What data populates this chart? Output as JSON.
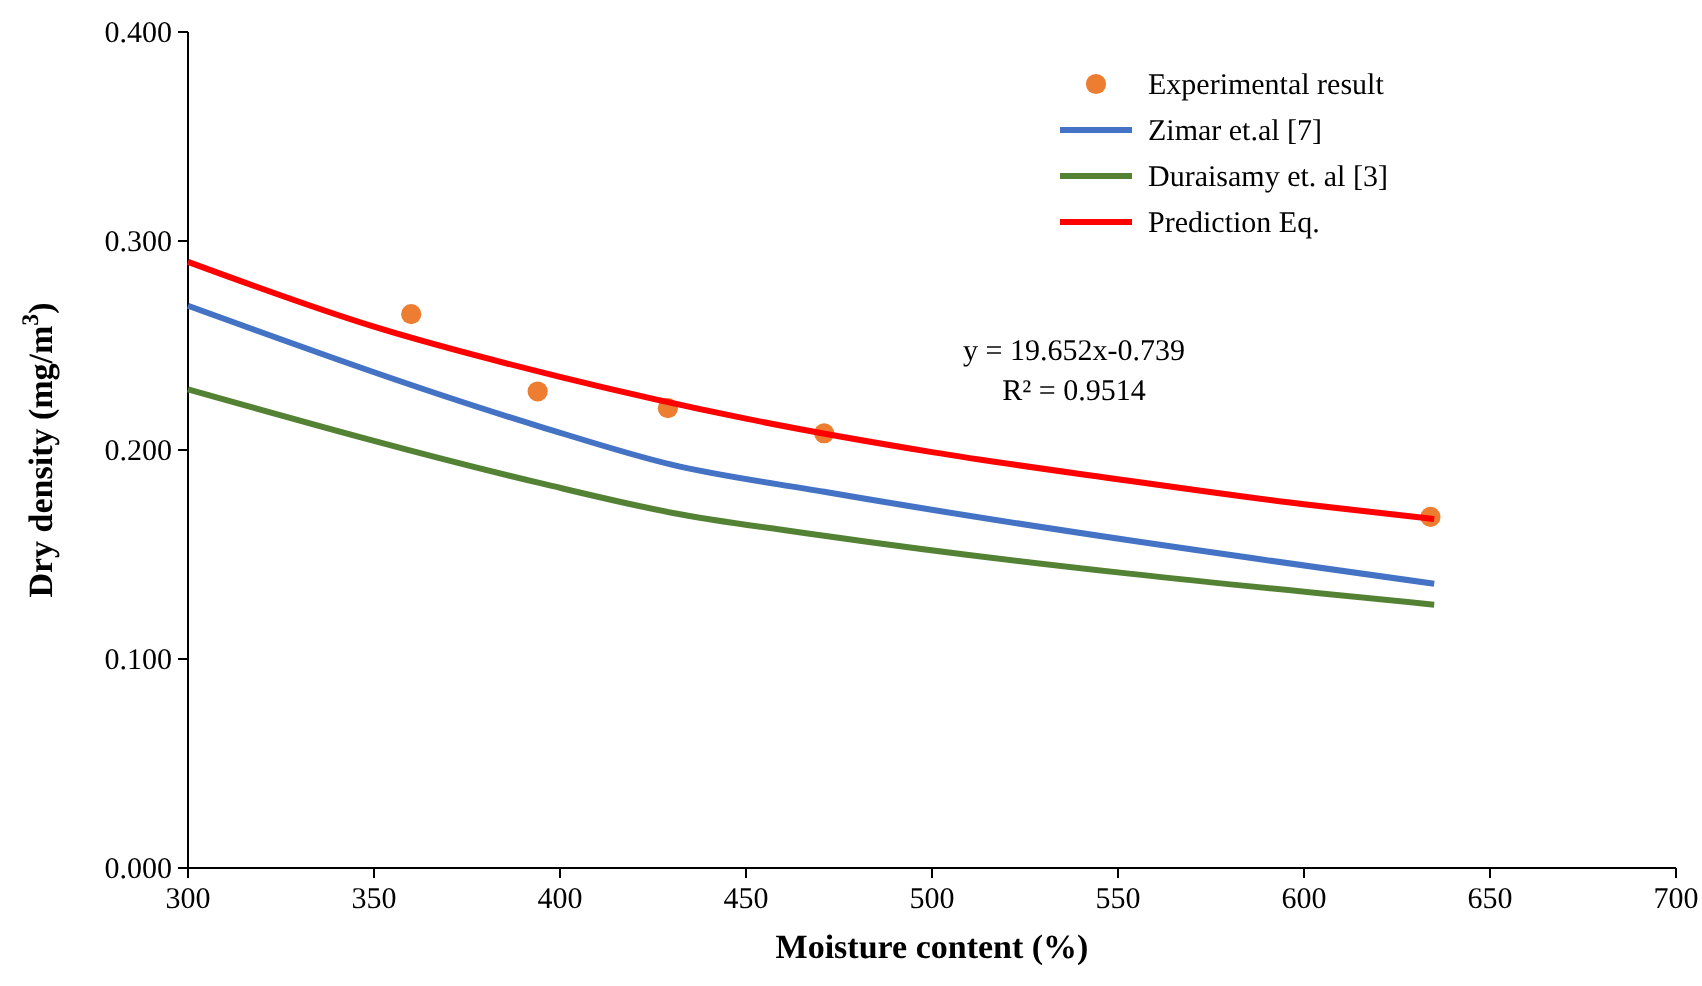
{
  "chart_data": {
    "type": "line",
    "xlabel": "Moisture content (%)",
    "ylabel": "Dry density (mg/m$^{3}$)",
    "xlim": [
      300,
      700
    ],
    "xticks": [
      300,
      350,
      400,
      450,
      500,
      550,
      600,
      650,
      700
    ],
    "ylim": [
      0,
      0.4
    ],
    "yticks": [
      {
        "value": 0,
        "label": "0.000"
      },
      {
        "value": 0.1,
        "label": "0.100"
      },
      {
        "value": 0.2,
        "label": "0.200"
      },
      {
        "value": 0.3,
        "label": "0.300"
      },
      {
        "value": 0.4,
        "label": "0.400"
      }
    ],
    "grid": false,
    "legend": "top right",
    "annotations": [
      "y = 19.652x-0.739",
      "R² = 0.9514"
    ],
    "series": [
      {
        "name": "Experimental result",
        "type": "scatter",
        "marker": "circle",
        "color": "#ed7d31",
        "x": [
          360,
          394,
          429,
          471,
          634
        ],
        "values": [
          0.265,
          0.228,
          0.22,
          0.208,
          0.168
        ]
      },
      {
        "name": "Zimar et.al [7]",
        "color": "#4472c4",
        "x": [
          300,
          395,
          430,
          471,
          635
        ],
        "values": [
          0.269,
          0.211,
          0.193,
          0.18,
          0.136
        ]
      },
      {
        "name": "Duraisamy et. al [3]",
        "color": "#548235",
        "x": [
          300,
          395,
          430,
          471,
          635
        ],
        "values": [
          0.229,
          0.184,
          0.17,
          0.159,
          0.126
        ]
      },
      {
        "name": "Prediction Eq.",
        "color": "#ff0000",
        "x": [
          300,
          350,
          400,
          450,
          500,
          550,
          600,
          635
        ],
        "values": [
          0.29,
          0.259,
          0.235,
          0.215,
          0.199,
          0.186,
          0.174,
          0.167
        ]
      }
    ]
  }
}
